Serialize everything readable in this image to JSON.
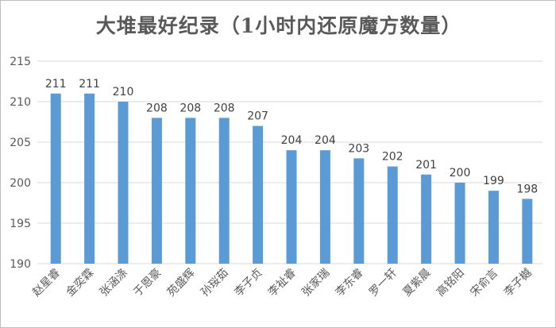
{
  "chart_data": {
    "type": "bar",
    "title": "大堆最好纪录（1小时内还原魔方数量）",
    "xlabel": "",
    "ylabel": "",
    "categories": [
      "赵星睿",
      "金奕霖",
      "张涵涤",
      "于恩豪",
      "苑盛辉",
      "孙珱茹",
      "李子贞",
      "李祉睿",
      "张家瑞",
      "李东睿",
      "罗一轩",
      "夏紫晨",
      "高铭阳",
      "宋俞言",
      "李子樾"
    ],
    "values": [
      211,
      211,
      210,
      208,
      208,
      208,
      207,
      204,
      204,
      203,
      202,
      201,
      200,
      199,
      198
    ],
    "ylim": [
      190,
      215
    ],
    "yticks": [
      190,
      195,
      200,
      205,
      210,
      215
    ],
    "grid": true,
    "legend": "none",
    "bar_color": "#5b9bd5",
    "grid_color": "#d9d9d9"
  }
}
